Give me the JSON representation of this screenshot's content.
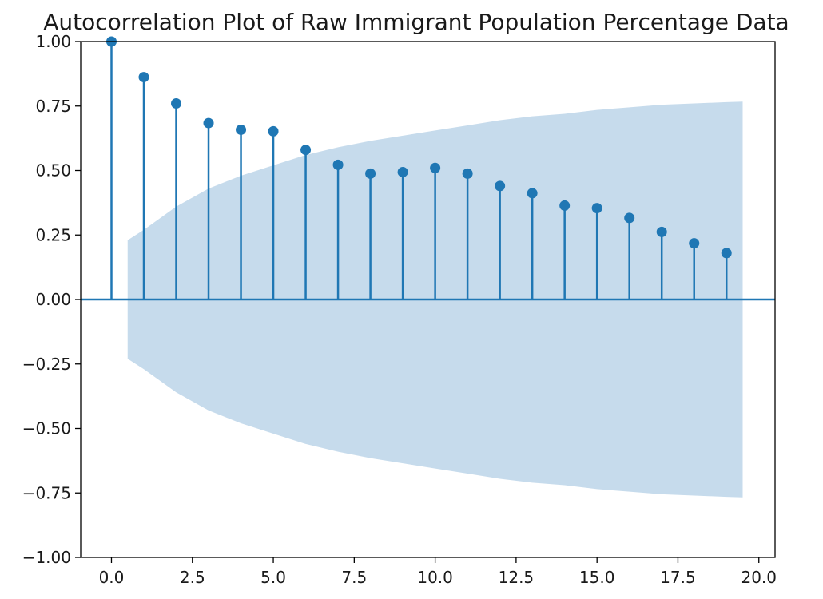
{
  "chart_data": {
    "type": "stem",
    "title": "Autocorrelation Plot of Raw Immigrant Population Percentage Data",
    "xlabel": "",
    "ylabel": "",
    "xlim": [
      -0.95,
      20.5
    ],
    "ylim": [
      -1.0,
      1.0
    ],
    "x_ticks": [
      0.0,
      2.5,
      5.0,
      7.5,
      10.0,
      12.5,
      15.0,
      17.5,
      20.0
    ],
    "x_tick_labels": [
      "0.0",
      "2.5",
      "5.0",
      "7.5",
      "10.0",
      "12.5",
      "15.0",
      "17.5",
      "20.0"
    ],
    "y_ticks": [
      1.0,
      0.75,
      0.5,
      0.25,
      0.0,
      -0.25,
      -0.5,
      -0.75,
      -1.0
    ],
    "y_tick_labels": [
      "1.00",
      "0.75",
      "0.50",
      "0.25",
      "0.00",
      "−0.25",
      "−0.50",
      "−0.75",
      "−1.00"
    ],
    "grid": false,
    "series": [
      {
        "lags": [
          0,
          1,
          2,
          3,
          4,
          5,
          6,
          7,
          8,
          9,
          10,
          11,
          12,
          13,
          14,
          15,
          16,
          17,
          18,
          19
        ],
        "values": [
          1.0,
          0.862,
          0.76,
          0.684,
          0.658,
          0.652,
          0.58,
          0.522,
          0.488,
          0.494,
          0.51,
          0.488,
          0.44,
          0.412,
          0.364,
          0.354,
          0.316,
          0.262,
          0.218,
          0.18
        ]
      }
    ],
    "confidence_band": {
      "x": [
        0.5,
        1,
        2,
        3,
        4,
        5,
        6,
        7,
        8,
        9,
        10,
        11,
        12,
        13,
        14,
        15,
        16,
        17,
        18,
        19,
        19.5
      ],
      "upper": [
        0.23,
        0.27,
        0.36,
        0.43,
        0.48,
        0.52,
        0.56,
        0.59,
        0.615,
        0.635,
        0.655,
        0.675,
        0.695,
        0.71,
        0.72,
        0.735,
        0.745,
        0.755,
        0.76,
        0.765,
        0.767
      ]
    },
    "colors": {
      "stem": "#1f77b4",
      "band": "#c6dbec",
      "zero_line": "#1f77b4",
      "axis": "#000000",
      "text": "#1a1a1a"
    }
  }
}
